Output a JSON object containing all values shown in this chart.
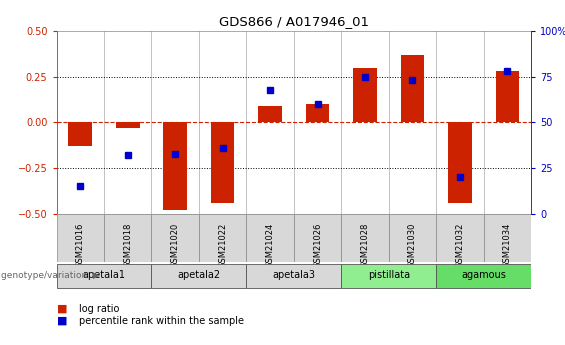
{
  "title": "GDS866 / A017946_01",
  "samples": [
    "GSM21016",
    "GSM21018",
    "GSM21020",
    "GSM21022",
    "GSM21024",
    "GSM21026",
    "GSM21028",
    "GSM21030",
    "GSM21032",
    "GSM21034"
  ],
  "log_ratios": [
    -0.13,
    -0.03,
    -0.48,
    -0.44,
    0.09,
    0.1,
    0.3,
    0.37,
    -0.44,
    0.28
  ],
  "percentile_ranks": [
    15,
    32,
    33,
    36,
    68,
    60,
    75,
    73,
    20,
    78
  ],
  "groups": [
    {
      "name": "apetala1",
      "indices": [
        0,
        1
      ],
      "color": "#d8d8d8"
    },
    {
      "name": "apetala2",
      "indices": [
        2,
        3
      ],
      "color": "#d8d8d8"
    },
    {
      "name": "apetala3",
      "indices": [
        4,
        5
      ],
      "color": "#d8d8d8"
    },
    {
      "name": "pistillata",
      "indices": [
        6,
        7
      ],
      "color": "#90ee90"
    },
    {
      "name": "agamous",
      "indices": [
        8,
        9
      ],
      "color": "#66dd66"
    }
  ],
  "ylim": [
    -0.5,
    0.5
  ],
  "y2lim": [
    0,
    100
  ],
  "bar_color": "#cc2200",
  "dot_color": "#0000cc",
  "bar_width": 0.5,
  "dot_size": 5,
  "zero_line_color": "#cc2200",
  "background_color": "#ffffff",
  "cell_color": "#d8d8d8",
  "cell_edge_color": "#888888",
  "yticks_left": [
    -0.5,
    -0.25,
    0,
    0.25,
    0.5
  ],
  "yticks_right": [
    0,
    25,
    50,
    75,
    100
  ],
  "ytick_labels_right": [
    "0",
    "25",
    "50",
    "75",
    "100%"
  ],
  "ytick_color_left": "#cc2200",
  "ytick_color_right": "#0000cc"
}
